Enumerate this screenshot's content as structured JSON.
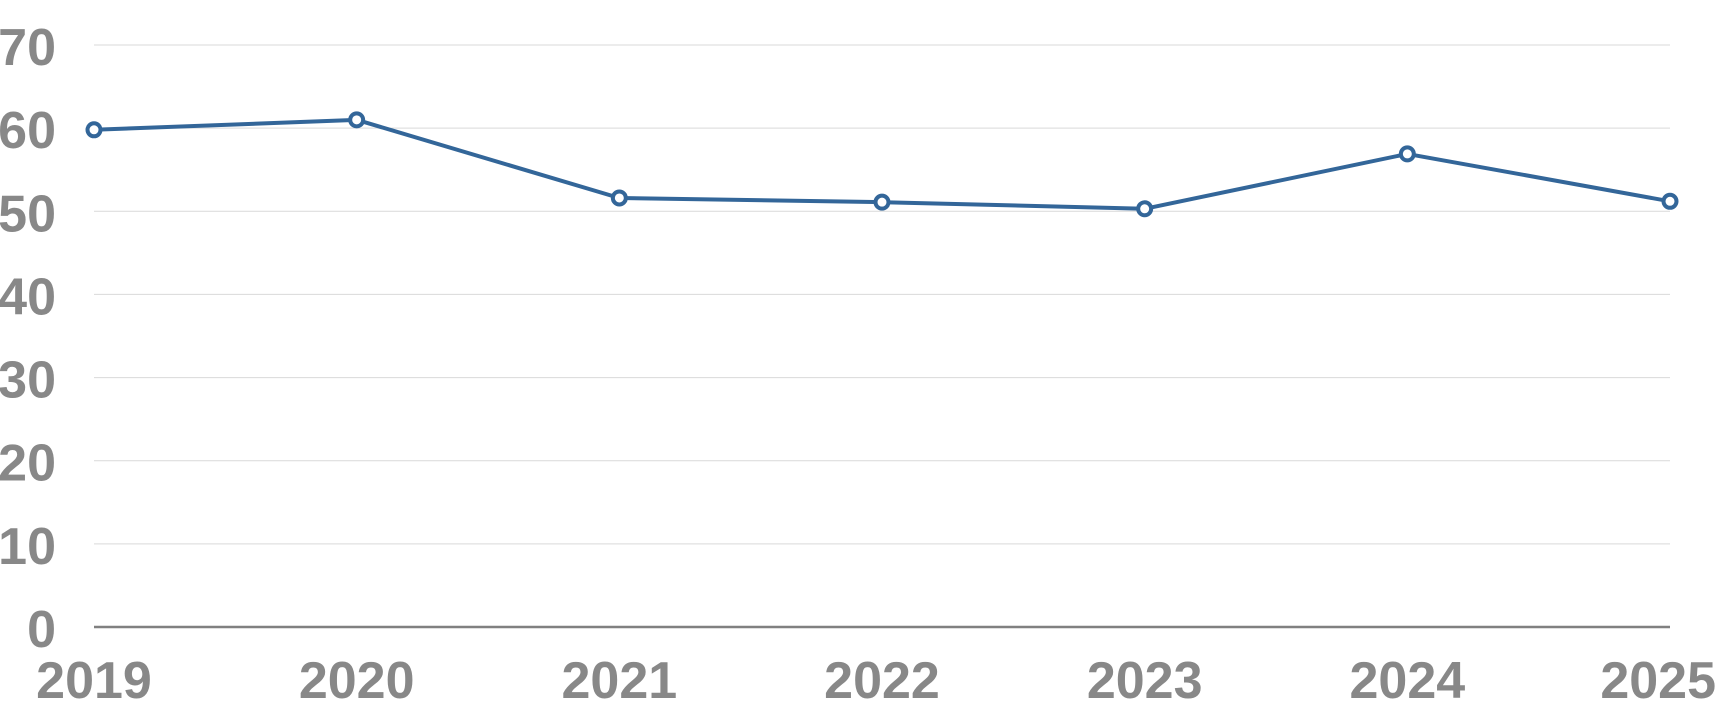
{
  "chart_data": {
    "type": "line",
    "title": "",
    "xlabel": "",
    "ylabel": "",
    "categories": [
      "2019",
      "2020",
      "2021",
      "2022",
      "2023",
      "2024",
      "2025"
    ],
    "series": [
      {
        "values": [
          59.8,
          61.0,
          51.6,
          51.1,
          50.3,
          56.9,
          51.2
        ]
      }
    ],
    "ylim": [
      0,
      70
    ],
    "yticks": [
      0,
      10,
      20,
      30,
      40,
      50,
      60,
      70
    ],
    "grid": true,
    "legend": "none",
    "colors": {
      "line": "#336699",
      "marker_fill": "#ffffff",
      "grid": "#d9d9d9",
      "axis": "#808080",
      "tick_text": "#888888"
    }
  }
}
